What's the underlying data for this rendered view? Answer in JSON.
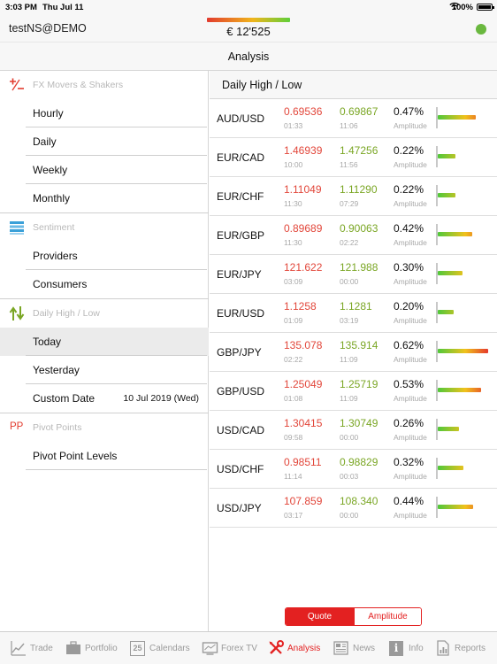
{
  "status_bar": {
    "time": "3:03 PM",
    "date": "Thu Jul 11",
    "battery": "100%"
  },
  "account": {
    "name": "testNS@DEMO",
    "balance": "€ 12'525"
  },
  "title": "Analysis",
  "sidebar": {
    "fx_movers": {
      "label": "FX Movers & Shakers",
      "items": [
        "Hourly",
        "Daily",
        "Weekly",
        "Monthly"
      ]
    },
    "sentiment": {
      "label": "Sentiment",
      "items": [
        "Providers",
        "Consumers"
      ]
    },
    "daily_high_low": {
      "label": "Daily High / Low",
      "items": [
        "Today",
        "Yesterday"
      ],
      "custom_date_label": "Custom Date",
      "custom_date_value": "10 Jul 2019 (Wed)"
    },
    "pivot": {
      "label": "Pivot Points",
      "icon_text": "PP",
      "items": [
        "Pivot Point Levels"
      ]
    }
  },
  "main": {
    "title": "Daily High / Low",
    "amplitude_label": "Amplitude",
    "rows": [
      {
        "pair": "AUD/USD",
        "low": "0.69536",
        "low_time": "01:33",
        "high": "0.69867",
        "high_time": "11:06",
        "amplitude": "0.47%",
        "amplitude_value": 0.47
      },
      {
        "pair": "EUR/CAD",
        "low": "1.46939",
        "low_time": "10:00",
        "high": "1.47256",
        "high_time": "11:56",
        "amplitude": "0.22%",
        "amplitude_value": 0.22
      },
      {
        "pair": "EUR/CHF",
        "low": "1.11049",
        "low_time": "11:30",
        "high": "1.11290",
        "high_time": "07:29",
        "amplitude": "0.22%",
        "amplitude_value": 0.22
      },
      {
        "pair": "EUR/GBP",
        "low": "0.89689",
        "low_time": "11:30",
        "high": "0.90063",
        "high_time": "02:22",
        "amplitude": "0.42%",
        "amplitude_value": 0.42
      },
      {
        "pair": "EUR/JPY",
        "low": "121.622",
        "low_time": "03:09",
        "high": "121.988",
        "high_time": "00:00",
        "amplitude": "0.30%",
        "amplitude_value": 0.3
      },
      {
        "pair": "EUR/USD",
        "low": "1.1258",
        "low_time": "01:09",
        "high": "1.1281",
        "high_time": "03:19",
        "amplitude": "0.20%",
        "amplitude_value": 0.2
      },
      {
        "pair": "GBP/JPY",
        "low": "135.078",
        "low_time": "02:22",
        "high": "135.914",
        "high_time": "11:09",
        "amplitude": "0.62%",
        "amplitude_value": 0.62
      },
      {
        "pair": "GBP/USD",
        "low": "1.25049",
        "low_time": "01:08",
        "high": "1.25719",
        "high_time": "11:09",
        "amplitude": "0.53%",
        "amplitude_value": 0.53
      },
      {
        "pair": "USD/CAD",
        "low": "1.30415",
        "low_time": "09:58",
        "high": "1.30749",
        "high_time": "00:00",
        "amplitude": "0.26%",
        "amplitude_value": 0.26
      },
      {
        "pair": "USD/CHF",
        "low": "0.98511",
        "low_time": "11:14",
        "high": "0.98829",
        "high_time": "00:03",
        "amplitude": "0.32%",
        "amplitude_value": 0.32
      },
      {
        "pair": "USD/JPY",
        "low": "107.859",
        "low_time": "03:17",
        "high": "108.340",
        "high_time": "00:00",
        "amplitude": "0.44%",
        "amplitude_value": 0.44
      }
    ]
  },
  "segmented": {
    "quote": "Quote",
    "amplitude": "Amplitude",
    "selected": "quote"
  },
  "tabs": [
    {
      "label": "Trade",
      "icon": "trade-chart-icon"
    },
    {
      "label": "Portfolio",
      "icon": "briefcase-icon"
    },
    {
      "label": "Calendars",
      "icon": "calendar-icon",
      "icon_text": "25"
    },
    {
      "label": "Forex TV",
      "icon": "tv-icon"
    },
    {
      "label": "Analysis",
      "icon": "tools-icon",
      "active": true
    },
    {
      "label": "News",
      "icon": "newspaper-icon"
    },
    {
      "label": "Info",
      "icon": "info-icon",
      "icon_text": "i"
    },
    {
      "label": "Reports",
      "icon": "report-icon"
    }
  ],
  "colors": {
    "accent": "#e32121",
    "low": "#e2463a",
    "high": "#7aa624",
    "online": "#6ab83f"
  }
}
